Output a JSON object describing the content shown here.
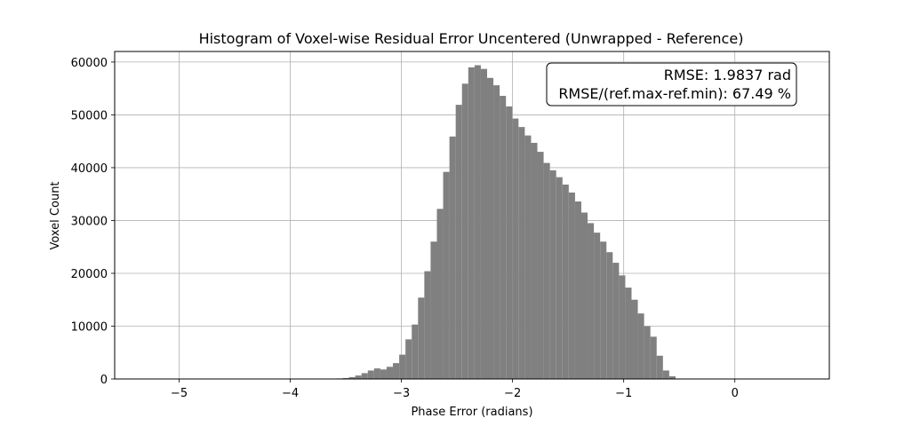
{
  "chart_data": {
    "type": "bar",
    "title": "Histogram of Voxel-wise Residual Error Uncentered (Unwrapped - Reference)",
    "xlabel": "Phase Error (radians)",
    "ylabel": "Voxel Count",
    "xlim": [
      -5.58,
      0.85
    ],
    "ylim": [
      0,
      62000
    ],
    "xticks": [
      -5,
      -4,
      -3,
      -2,
      -1,
      0
    ],
    "xtick_labels": [
      "−5",
      "−4",
      "−3",
      "−2",
      "−1",
      "0"
    ],
    "yticks": [
      0,
      10000,
      20000,
      30000,
      40000,
      50000,
      60000
    ],
    "ytick_labels": [
      "0",
      "10000",
      "20000",
      "30000",
      "40000",
      "50000",
      "60000"
    ],
    "grid": true,
    "bar_color": "#808080",
    "bin_width": 0.0565,
    "bin_edges_start": -3.585,
    "counts": [
      100,
      180,
      350,
      650,
      1100,
      1600,
      2000,
      1800,
      2300,
      3000,
      4600,
      7500,
      10300,
      15400,
      20400,
      26000,
      32200,
      39200,
      45900,
      51900,
      55900,
      59000,
      59400,
      58700,
      57000,
      55600,
      53600,
      51600,
      49300,
      47700,
      46100,
      44700,
      43000,
      40900,
      39500,
      38200,
      36800,
      35300,
      33600,
      31500,
      29500,
      27700,
      26000,
      24000,
      22000,
      19600,
      17300,
      15000,
      12400,
      10000,
      8000,
      4400,
      1600,
      500
    ],
    "annotation": {
      "lines": [
        "RMSE: 1.9837 rad",
        "RMSE/(ref.max-ref.min): 67.49 %"
      ],
      "placement": "top-right"
    }
  }
}
